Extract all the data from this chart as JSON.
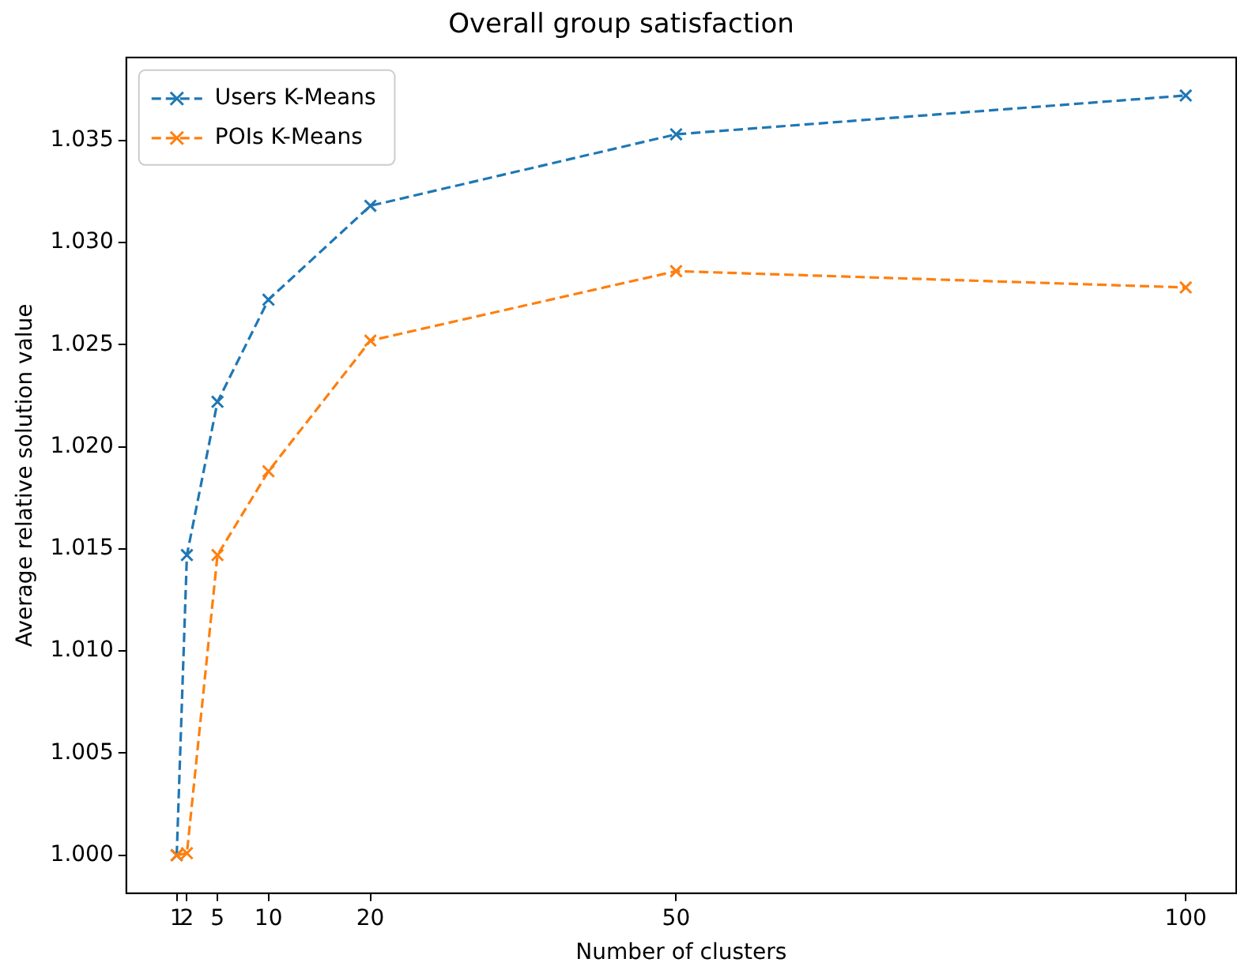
{
  "chart_data": {
    "type": "line",
    "title": "Overall group satisfaction",
    "xlabel": "Number of clusters",
    "ylabel": "Average relative solution value",
    "x": [
      1,
      2,
      5,
      10,
      20,
      50,
      100
    ],
    "series": [
      {
        "name": "Users K-Means",
        "color": "#1f77b4",
        "values": [
          1.0,
          1.0147,
          1.0222,
          1.0272,
          1.0318,
          1.0353,
          1.0372
        ]
      },
      {
        "name": "POIs K-Means",
        "color": "#ff7f0e",
        "values": [
          1.0,
          1.0001,
          1.0147,
          1.0188,
          1.0252,
          1.0286,
          1.0278
        ]
      }
    ],
    "xlim": [
      -3.95,
      104.95
    ],
    "xticks": [
      1,
      2,
      5,
      10,
      20,
      50,
      100
    ],
    "ylim": [
      0.99814,
      1.03906
    ],
    "yticks": [
      {
        "value": 1.0,
        "label": "1.000"
      },
      {
        "value": 1.005,
        "label": "1.005"
      },
      {
        "value": 1.01,
        "label": "1.010"
      },
      {
        "value": 1.015,
        "label": "1.015"
      },
      {
        "value": 1.02,
        "label": "1.020"
      },
      {
        "value": 1.025,
        "label": "1.025"
      },
      {
        "value": 1.03,
        "label": "1.030"
      },
      {
        "value": 1.035,
        "label": "1.035"
      }
    ],
    "grid": false,
    "legend": "top left",
    "marker": "cross",
    "line_style": "dashed"
  }
}
